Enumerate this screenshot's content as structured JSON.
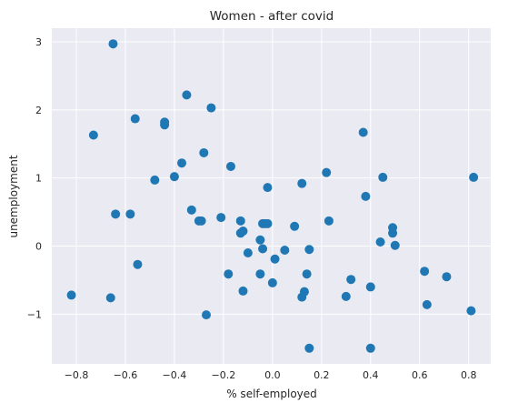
{
  "chart_data": {
    "type": "scatter",
    "title": "Women - after covid",
    "xlabel": "% self-employed",
    "ylabel": "unemployment",
    "xlim": [
      -0.9,
      0.89
    ],
    "ylim": [
      -1.73,
      3.2
    ],
    "grid": true,
    "x_ticks": [
      -0.8,
      -0.6,
      -0.4,
      -0.2,
      0.0,
      0.2,
      0.4,
      0.6,
      0.8
    ],
    "x_tick_labels": [
      "−0.8",
      "−0.6",
      "−0.4",
      "−0.2",
      "0.0",
      "0.2",
      "0.4",
      "0.6",
      "0.8"
    ],
    "y_ticks": [
      -1,
      0,
      1,
      2,
      3
    ],
    "y_tick_labels": [
      "−1",
      "0",
      "1",
      "2",
      "3"
    ],
    "colors": {
      "marker": "#1f77b4",
      "plot_background": "#eaeaf2",
      "grid": "#ffffff"
    },
    "series": [
      {
        "points": [
          [
            -0.65,
            2.97
          ],
          [
            -0.73,
            1.63
          ],
          [
            -0.56,
            1.87
          ],
          [
            -0.64,
            0.47
          ],
          [
            -0.58,
            0.47
          ],
          [
            -0.55,
            -0.27
          ],
          [
            -0.82,
            -0.72
          ],
          [
            -0.66,
            -0.76
          ],
          [
            -0.35,
            2.22
          ],
          [
            -0.44,
            1.82
          ],
          [
            -0.44,
            1.78
          ],
          [
            -0.25,
            2.03
          ],
          [
            -0.37,
            1.22
          ],
          [
            -0.28,
            1.37
          ],
          [
            -0.48,
            0.97
          ],
          [
            -0.4,
            1.02
          ],
          [
            -0.17,
            1.17
          ],
          [
            -0.33,
            0.53
          ],
          [
            -0.29,
            0.37
          ],
          [
            -0.3,
            0.37
          ],
          [
            -0.21,
            0.42
          ],
          [
            -0.13,
            0.37
          ],
          [
            -0.13,
            0.19
          ],
          [
            -0.12,
            0.22
          ],
          [
            -0.27,
            -1.01
          ],
          [
            -0.18,
            -0.41
          ],
          [
            -0.1,
            -0.1
          ],
          [
            -0.12,
            -0.66
          ],
          [
            -0.05,
            0.09
          ],
          [
            -0.04,
            -0.04
          ],
          [
            -0.04,
            0.33
          ],
          [
            -0.03,
            0.33
          ],
          [
            -0.02,
            0.33
          ],
          [
            -0.02,
            0.86
          ],
          [
            -0.05,
            -0.41
          ],
          [
            0.01,
            -0.19
          ],
          [
            0.0,
            -0.54
          ],
          [
            0.05,
            -0.06
          ],
          [
            0.09,
            0.29
          ],
          [
            0.12,
            0.92
          ],
          [
            0.14,
            -0.41
          ],
          [
            0.15,
            -0.05
          ],
          [
            0.13,
            -0.67
          ],
          [
            0.12,
            -0.75
          ],
          [
            0.15,
            -1.5
          ],
          [
            0.22,
            1.08
          ],
          [
            0.23,
            0.37
          ],
          [
            0.3,
            -0.74
          ],
          [
            0.32,
            -0.49
          ],
          [
            0.37,
            1.67
          ],
          [
            0.38,
            0.73
          ],
          [
            0.4,
            -0.6
          ],
          [
            0.4,
            -1.5
          ],
          [
            0.44,
            0.06
          ],
          [
            0.45,
            1.01
          ],
          [
            0.49,
            0.27
          ],
          [
            0.49,
            0.19
          ],
          [
            0.5,
            0.01
          ],
          [
            0.62,
            -0.37
          ],
          [
            0.63,
            -0.86
          ],
          [
            0.71,
            -0.45
          ],
          [
            0.81,
            -0.95
          ],
          [
            0.82,
            1.01
          ]
        ]
      }
    ]
  }
}
